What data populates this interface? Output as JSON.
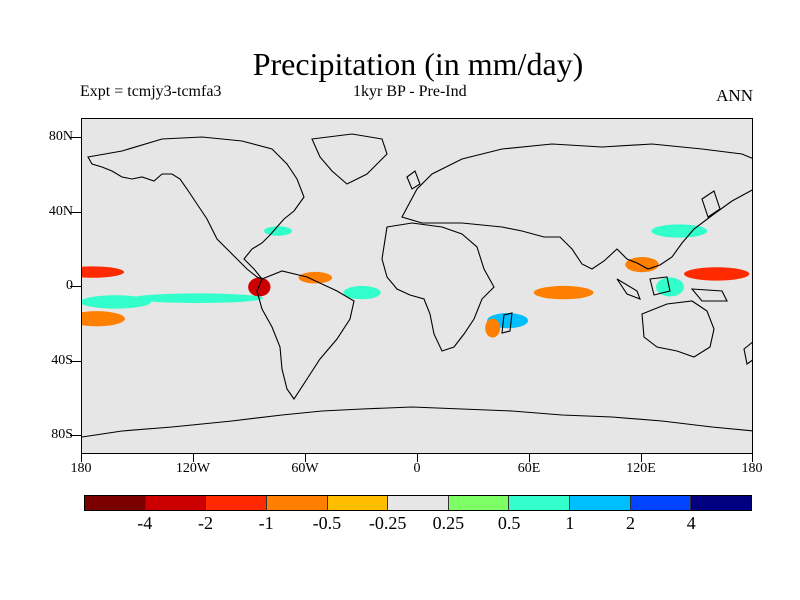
{
  "title": "Precipitation (in mm/day)",
  "subtitle_left": "Expt = tcmjy3-tcmfa3",
  "subtitle_center": "1kyr BP - Pre-Ind",
  "subtitle_right": "ANN",
  "y_axis_labels": [
    "80N",
    "40N",
    "0",
    "40S",
    "80S"
  ],
  "x_axis_labels": [
    "180",
    "120W",
    "60W",
    "0",
    "60E",
    "120E",
    "180"
  ],
  "colorbar": {
    "colors": [
      "#7a0000",
      "#cc0000",
      "#ff2a00",
      "#ff7f00",
      "#ffbf00",
      "#e6e6e6",
      "#7fff66",
      "#33ffcc",
      "#00bfff",
      "#0044ff",
      "#000080"
    ],
    "labels": [
      "-4",
      "-2",
      "-1",
      "-0.5",
      "-0.25",
      "0.25",
      "0.5",
      "1",
      "2",
      "4"
    ]
  },
  "chart_data": {
    "type": "heatmap",
    "title": "Precipitation (in mm/day)",
    "projection": "cylindrical equidistant",
    "lon_range": [
      -180,
      180
    ],
    "lat_range": [
      -90,
      90
    ],
    "levels": [
      -4,
      -2,
      -1,
      -0.5,
      -0.25,
      0.25,
      0.5,
      1,
      2,
      4
    ],
    "background_color": "#e6e6e6",
    "anomaly_patches": [
      {
        "lon": -175,
        "lat": 8,
        "w": 35,
        "h": 4,
        "level": "-1"
      },
      {
        "lon": -172,
        "lat": -17,
        "w": 30,
        "h": 6,
        "level": "-0.5"
      },
      {
        "lon": -162,
        "lat": -8,
        "w": 38,
        "h": 5,
        "level": "0.5"
      },
      {
        "lon": -118,
        "lat": -6,
        "w": 70,
        "h": 3,
        "level": "0.5"
      },
      {
        "lon": -85,
        "lat": 0,
        "w": 12,
        "h": 8,
        "level": "-2"
      },
      {
        "lon": -55,
        "lat": 5,
        "w": 18,
        "h": 4,
        "level": "-0.5"
      },
      {
        "lon": -30,
        "lat": -3,
        "w": 20,
        "h": 5,
        "level": "0.5"
      },
      {
        "lon": -75,
        "lat": 30,
        "w": 15,
        "h": 3,
        "level": "0.5"
      },
      {
        "lon": 48,
        "lat": -18,
        "w": 22,
        "h": 6,
        "level": "1"
      },
      {
        "lon": 40,
        "lat": -22,
        "w": 8,
        "h": 8,
        "level": "-0.5"
      },
      {
        "lon": 78,
        "lat": -3,
        "w": 32,
        "h": 5,
        "level": "-0.5"
      },
      {
        "lon": 120,
        "lat": 12,
        "w": 18,
        "h": 6,
        "level": "-0.5"
      },
      {
        "lon": 140,
        "lat": 30,
        "w": 30,
        "h": 5,
        "level": "0.5"
      },
      {
        "lon": 160,
        "lat": 7,
        "w": 35,
        "h": 5,
        "level": "-1"
      },
      {
        "lon": 135,
        "lat": 0,
        "w": 15,
        "h": 8,
        "level": "0.5"
      }
    ]
  }
}
